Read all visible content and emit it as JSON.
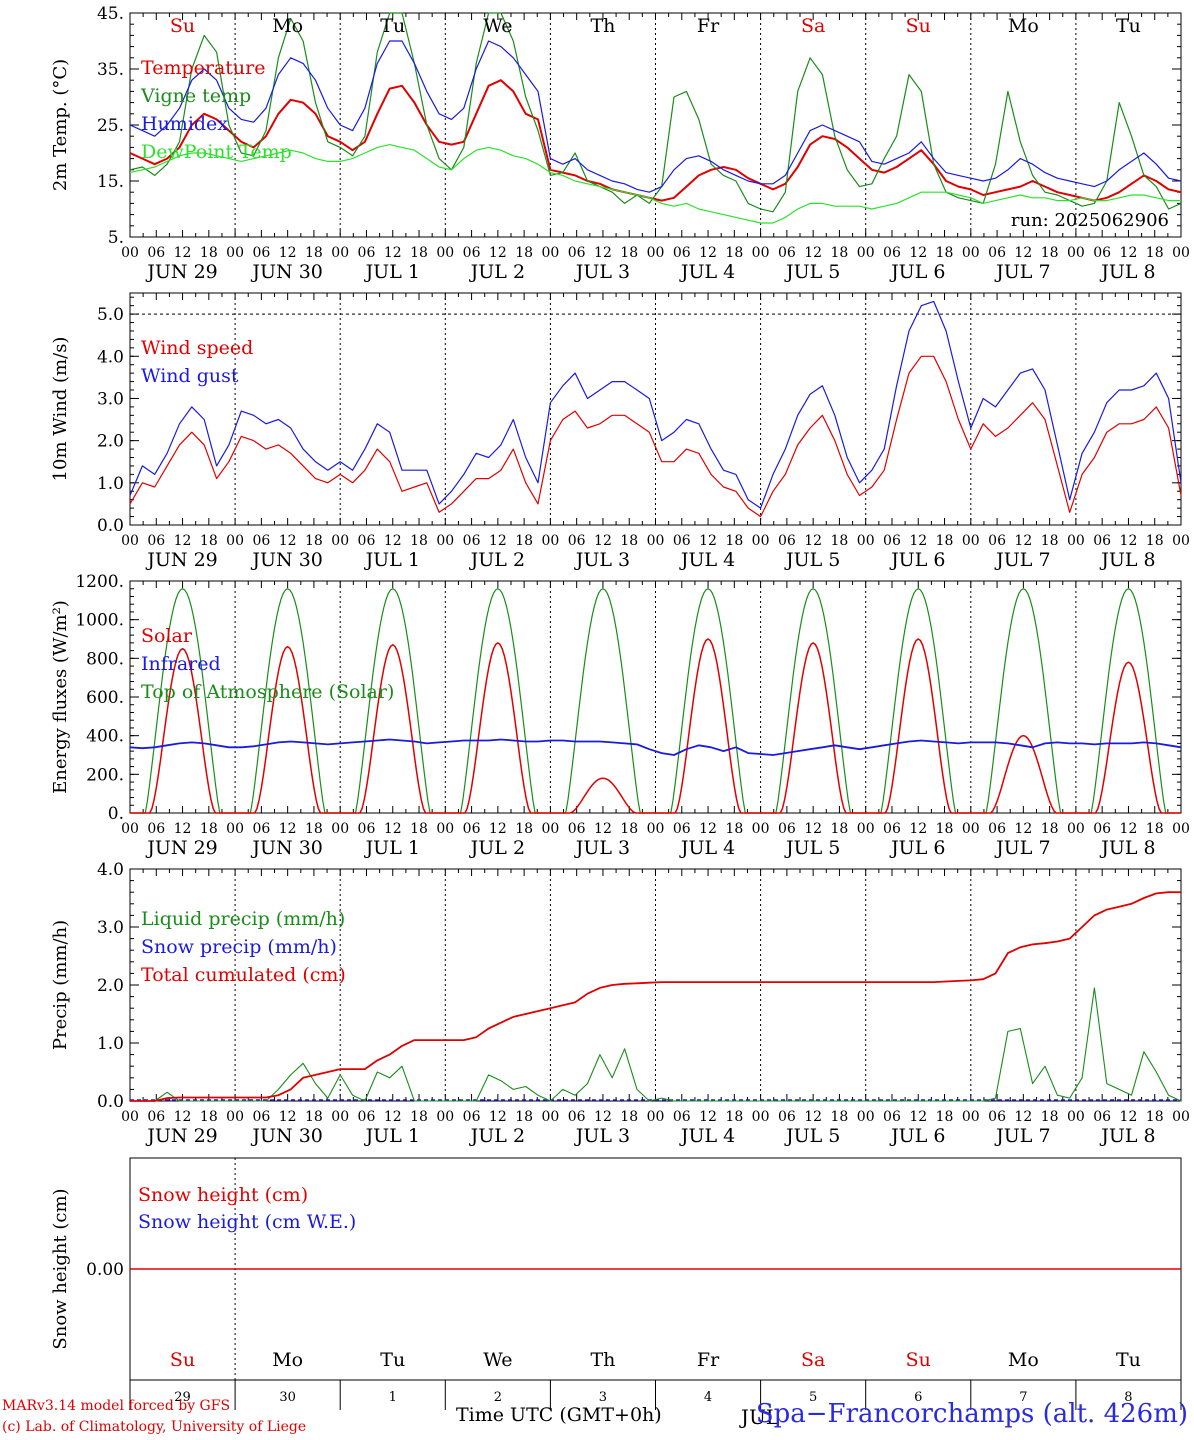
{
  "days": {
    "weekday_labels": [
      "Su",
      "Mo",
      "Tu",
      "We",
      "Th",
      "Fr",
      "Sa",
      "Su",
      "Mo",
      "Tu"
    ],
    "weekday_colors": [
      "#e00000",
      "#000000",
      "#000000",
      "#000000",
      "#000000",
      "#000000",
      "#e00000",
      "#e00000",
      "#000000",
      "#000000"
    ],
    "date_labels": [
      "JUN 29",
      "JUN 30",
      "JUL  1",
      "JUL  2",
      "JUL  3",
      "JUL  4",
      "JUL  5",
      "JUL  6",
      "JUL  7",
      "JUL  8"
    ],
    "bottom_day_numbers": [
      "29",
      "30",
      "1",
      "2",
      "3",
      "4",
      "5",
      "6",
      "7",
      "8"
    ],
    "hour_labels": [
      "00",
      "06",
      "12",
      "18"
    ],
    "final_hour_label": "00"
  },
  "footer": {
    "model_text": "MARv3.14 model forced by GFS",
    "credit_text": "(c) Lab. of Climatology, University of Liege",
    "time_label": "Time UTC (GMT+0h)",
    "station_label": "Spa−Francorchamps (alt. 426m)",
    "overlap_text": "JUL"
  },
  "chart_data": [
    {
      "id": "temperature",
      "type": "line",
      "ylabel": "2m Temp. (°C)",
      "ylim": [
        5,
        45
      ],
      "yticks": [
        5,
        15,
        25,
        35,
        45
      ],
      "ytick_labels": [
        "5.",
        "15.",
        "25.",
        "35.",
        "45."
      ],
      "annotation": "run: 2025062906",
      "series": [
        {
          "name": "Temperature",
          "color": "#e00000",
          "values": [
            20.0,
            19.0,
            18.0,
            19.0,
            21.0,
            25.0,
            27.0,
            26.0,
            24.0,
            22.0,
            21.0,
            23.0,
            27.0,
            29.5,
            29.0,
            27.0,
            23.0,
            22.0,
            20.5,
            22.0,
            27.0,
            31.5,
            32.0,
            29.0,
            25.0,
            22.0,
            21.5,
            22.0,
            27.0,
            32.0,
            33.0,
            31.0,
            27.0,
            26.0,
            17.0,
            16.5,
            16.0,
            15.0,
            14.5,
            13.5,
            13.0,
            12.5,
            12.0,
            11.5,
            12.0,
            14.0,
            16.0,
            17.0,
            17.5,
            17.0,
            15.5,
            14.5,
            13.5,
            14.5,
            17.5,
            21.5,
            23.0,
            22.5,
            21.0,
            19.0,
            17.0,
            16.5,
            17.5,
            19.0,
            20.5,
            18.0,
            15.0,
            14.0,
            13.5,
            12.5,
            13.0,
            13.5,
            14.0,
            15.0,
            14.0,
            13.0,
            12.5,
            12.0,
            11.5,
            12.0,
            13.0,
            14.5,
            16.0,
            15.0,
            13.5,
            13.0
          ]
        },
        {
          "name": "Vigne temp",
          "color": "#1a8c1a",
          "values": [
            17.0,
            17.5,
            16.0,
            18.0,
            22.0,
            35.0,
            41.0,
            38.0,
            25.0,
            20.0,
            19.5,
            24.0,
            37.0,
            44.0,
            40.0,
            29.0,
            22.0,
            21.0,
            19.5,
            23.0,
            38.0,
            45.0,
            45.0,
            36.0,
            25.0,
            19.0,
            17.0,
            21.0,
            36.0,
            45.0,
            45.0,
            40.0,
            30.0,
            24.0,
            16.0,
            16.5,
            20.0,
            15.0,
            14.0,
            13.0,
            11.0,
            12.5,
            11.0,
            14.0,
            30.0,
            31.0,
            26.0,
            18.0,
            16.0,
            15.0,
            11.0,
            10.0,
            9.5,
            13.0,
            31.0,
            37.0,
            34.0,
            23.0,
            17.0,
            14.0,
            14.5,
            19.0,
            23.0,
            34.0,
            31.0,
            18.0,
            13.0,
            12.0,
            11.5,
            11.0,
            18.0,
            31.0,
            22.0,
            16.0,
            13.0,
            12.5,
            11.5,
            10.5,
            11.0,
            15.0,
            29.0,
            23.0,
            16.0,
            14.0,
            10.0,
            11.0
          ]
        },
        {
          "name": "Humidex",
          "color": "#1a1ae0",
          "values": [
            25.0,
            24.0,
            23.0,
            25.0,
            28.0,
            33.0,
            35.0,
            33.0,
            28.0,
            26.0,
            25.5,
            28.0,
            34.0,
            37.0,
            36.0,
            33.0,
            28.0,
            25.0,
            24.0,
            28.0,
            36.0,
            40.0,
            40.0,
            36.0,
            31.0,
            27.0,
            26.0,
            28.0,
            35.0,
            40.0,
            39.0,
            37.0,
            34.0,
            31.0,
            19.0,
            18.0,
            19.0,
            17.0,
            16.0,
            15.0,
            14.5,
            13.5,
            13.0,
            14.0,
            17.0,
            19.0,
            19.5,
            18.5,
            17.0,
            16.0,
            15.0,
            14.5,
            14.5,
            16.0,
            20.0,
            24.0,
            25.0,
            24.0,
            23.0,
            22.0,
            18.5,
            18.0,
            19.0,
            20.0,
            22.0,
            19.0,
            16.5,
            16.0,
            15.5,
            15.0,
            15.5,
            17.0,
            19.0,
            18.0,
            16.5,
            15.5,
            15.0,
            14.5,
            14.0,
            15.0,
            17.0,
            18.5,
            20.0,
            18.0,
            15.5,
            15.0
          ]
        },
        {
          "name": "DewPoint Temp",
          "color": "#2ee02e",
          "values": [
            16.5,
            17.0,
            17.5,
            18.5,
            19.5,
            20.0,
            20.0,
            19.5,
            19.0,
            18.5,
            19.0,
            19.5,
            20.0,
            20.5,
            20.0,
            19.0,
            18.5,
            18.5,
            19.0,
            20.0,
            21.0,
            21.5,
            21.0,
            20.5,
            19.0,
            17.5,
            17.0,
            19.0,
            20.5,
            21.0,
            20.5,
            19.5,
            19.0,
            18.0,
            16.5,
            16.0,
            15.0,
            14.5,
            14.0,
            13.5,
            13.0,
            12.5,
            12.0,
            11.0,
            10.5,
            11.0,
            10.0,
            9.5,
            9.0,
            8.5,
            8.0,
            7.5,
            7.5,
            8.5,
            10.0,
            11.0,
            11.0,
            10.5,
            10.5,
            10.5,
            10.0,
            10.5,
            11.0,
            12.0,
            13.0,
            13.0,
            13.0,
            12.5,
            12.0,
            11.0,
            11.5,
            12.0,
            12.5,
            12.0,
            12.0,
            11.5,
            11.5,
            12.0,
            11.5,
            11.5,
            12.0,
            12.5,
            12.5,
            12.0,
            11.5,
            11.5
          ]
        }
      ]
    },
    {
      "id": "wind",
      "type": "line",
      "ylabel": "10m Wind (m/s)",
      "ylim": [
        0,
        5.5
      ],
      "yticks": [
        0,
        1,
        2,
        3,
        4,
        5
      ],
      "ytick_labels": [
        "0.0",
        "1.0",
        "2.0",
        "3.0",
        "4.0",
        "5.0"
      ],
      "reference_line": 5.0,
      "series": [
        {
          "name": "Wind speed",
          "color": "#e00000",
          "values": [
            0.5,
            1.0,
            0.9,
            1.4,
            1.9,
            2.2,
            1.9,
            1.1,
            1.5,
            2.1,
            2.0,
            1.8,
            1.9,
            1.7,
            1.4,
            1.1,
            1.0,
            1.2,
            1.0,
            1.3,
            1.8,
            1.5,
            0.8,
            0.9,
            1.0,
            0.3,
            0.5,
            0.8,
            1.1,
            1.1,
            1.3,
            1.8,
            1.0,
            0.5,
            2.0,
            2.5,
            2.7,
            2.3,
            2.4,
            2.6,
            2.6,
            2.4,
            2.2,
            1.5,
            1.5,
            1.8,
            1.7,
            1.2,
            0.9,
            0.8,
            0.4,
            0.2,
            0.8,
            1.2,
            1.9,
            2.3,
            2.6,
            2.0,
            1.2,
            0.7,
            0.9,
            1.3,
            2.5,
            3.6,
            4.0,
            4.0,
            3.4,
            2.5,
            1.8,
            2.4,
            2.1,
            2.3,
            2.6,
            2.9,
            2.5,
            1.4,
            0.3,
            1.2,
            1.6,
            2.2,
            2.4,
            2.4,
            2.5,
            2.8,
            2.3,
            0.7
          ]
        },
        {
          "name": "Wind gust",
          "color": "#1a1ae0",
          "values": [
            0.7,
            1.4,
            1.2,
            1.7,
            2.4,
            2.8,
            2.5,
            1.4,
            1.9,
            2.7,
            2.6,
            2.4,
            2.5,
            2.3,
            1.8,
            1.5,
            1.3,
            1.5,
            1.3,
            1.8,
            2.4,
            2.2,
            1.3,
            1.3,
            1.3,
            0.5,
            0.8,
            1.2,
            1.7,
            1.6,
            1.9,
            2.5,
            1.6,
            1.0,
            2.9,
            3.3,
            3.6,
            3.0,
            3.2,
            3.4,
            3.4,
            3.2,
            3.0,
            2.0,
            2.2,
            2.5,
            2.4,
            1.8,
            1.3,
            1.2,
            0.6,
            0.4,
            1.2,
            1.8,
            2.6,
            3.1,
            3.3,
            2.6,
            1.6,
            1.0,
            1.3,
            1.8,
            3.3,
            4.6,
            5.2,
            5.3,
            4.6,
            3.4,
            2.3,
            3.0,
            2.8,
            3.2,
            3.6,
            3.7,
            3.2,
            1.9,
            0.6,
            1.7,
            2.2,
            2.9,
            3.2,
            3.2,
            3.3,
            3.6,
            3.0,
            1.0
          ]
        }
      ]
    },
    {
      "id": "energy",
      "type": "line",
      "ylabel": "Energy fluxes (W/m²)",
      "ylim": [
        0,
        1200
      ],
      "yticks": [
        0,
        200,
        400,
        600,
        800,
        1000,
        1200
      ],
      "ytick_labels": [
        "0.",
        "200.",
        "400.",
        "600.",
        "800.",
        "1000.",
        "1200."
      ],
      "day_peaks": {
        "Solar": [
          850,
          860,
          870,
          880,
          180,
          900,
          880,
          900,
          400,
          780
        ],
        "Top of Atmosphere (Solar)": [
          1160,
          1160,
          1160,
          1160,
          1160,
          1160,
          1160,
          1160,
          1160,
          1160
        ]
      },
      "series": [
        {
          "name": "Solar",
          "color": "#e00000",
          "values": []
        },
        {
          "name": "Infrared",
          "color": "#1a1ae0",
          "values": [
            340,
            335,
            340,
            350,
            360,
            365,
            360,
            350,
            340,
            340,
            345,
            355,
            365,
            370,
            365,
            360,
            355,
            360,
            365,
            370,
            375,
            380,
            375,
            370,
            360,
            365,
            370,
            375,
            375,
            375,
            380,
            375,
            370,
            370,
            375,
            375,
            370,
            370,
            370,
            365,
            360,
            355,
            330,
            310,
            300,
            330,
            350,
            340,
            320,
            340,
            310,
            305,
            300,
            310,
            320,
            330,
            340,
            350,
            340,
            330,
            340,
            350,
            360,
            370,
            375,
            370,
            365,
            360,
            365,
            365,
            365,
            360,
            350,
            340,
            360,
            365,
            360,
            360,
            355,
            360,
            360,
            360,
            365,
            360,
            350,
            340
          ]
        },
        {
          "name": "Top of Atmosphere (Solar)",
          "color": "#1a8c1a",
          "values": []
        }
      ]
    },
    {
      "id": "precip",
      "type": "line",
      "ylabel": "Precip (mm/h)",
      "ylim": [
        0,
        4
      ],
      "yticks": [
        0,
        1,
        2,
        3,
        4
      ],
      "ytick_labels": [
        "0.0",
        "1.0",
        "2.0",
        "3.0",
        "4.0"
      ],
      "series": [
        {
          "name": "Liquid precip (mm/h)",
          "color": "#1a8c1a",
          "values": [
            0,
            0,
            0,
            0.15,
            0,
            0,
            0,
            0,
            0,
            0,
            0,
            0,
            0.2,
            0.45,
            0.65,
            0.3,
            0.05,
            0.45,
            0.1,
            0,
            0.5,
            0.4,
            0.6,
            0,
            0,
            0,
            0,
            0,
            0,
            0.45,
            0.35,
            0.2,
            0.25,
            0.1,
            0,
            0.2,
            0.1,
            0.3,
            0.8,
            0.4,
            0.9,
            0.2,
            0,
            0.05,
            0,
            0,
            0,
            0,
            0,
            0,
            0,
            0,
            0,
            0,
            0,
            0,
            0,
            0,
            0,
            0,
            0,
            0,
            0,
            0,
            0,
            0,
            0,
            0,
            0,
            0,
            0.05,
            1.2,
            1.25,
            0.3,
            0.6,
            0.1,
            0.05,
            0.4,
            1.95,
            0.3,
            0.2,
            0.1,
            0.85,
            0.5,
            0.1,
            0
          ]
        },
        {
          "name": "Snow precip (mm/h)",
          "color": "#1a1ae0",
          "values": []
        },
        {
          "name": "Total cumulated (cm)",
          "color": "#e00000",
          "values": [
            0,
            0,
            0,
            0.05,
            0.06,
            0.06,
            0.06,
            0.06,
            0.06,
            0.06,
            0.06,
            0.06,
            0.1,
            0.2,
            0.4,
            0.45,
            0.5,
            0.55,
            0.55,
            0.55,
            0.7,
            0.8,
            0.95,
            1.05,
            1.05,
            1.05,
            1.05,
            1.05,
            1.1,
            1.25,
            1.35,
            1.45,
            1.5,
            1.55,
            1.6,
            1.65,
            1.7,
            1.85,
            1.95,
            2.0,
            2.02,
            2.03,
            2.04,
            2.05,
            2.05,
            2.05,
            2.05,
            2.05,
            2.05,
            2.05,
            2.05,
            2.05,
            2.05,
            2.05,
            2.05,
            2.05,
            2.05,
            2.05,
            2.05,
            2.05,
            2.05,
            2.05,
            2.05,
            2.05,
            2.05,
            2.05,
            2.06,
            2.07,
            2.08,
            2.1,
            2.2,
            2.55,
            2.65,
            2.7,
            2.72,
            2.75,
            2.8,
            3.0,
            3.2,
            3.3,
            3.35,
            3.4,
            3.5,
            3.58,
            3.6,
            3.6
          ]
        }
      ]
    },
    {
      "id": "snow",
      "type": "line",
      "ylabel": "Snow height (cm)",
      "ylim": [
        -1,
        1
      ],
      "yticks": [
        0
      ],
      "ytick_labels": [
        "0.00"
      ],
      "series": [
        {
          "name": "Snow height (cm)",
          "color": "#e00000",
          "values": [
            0,
            0
          ]
        },
        {
          "name": "Snow height (cm W.E.)",
          "color": "#1a1ae0",
          "values": []
        }
      ]
    }
  ]
}
